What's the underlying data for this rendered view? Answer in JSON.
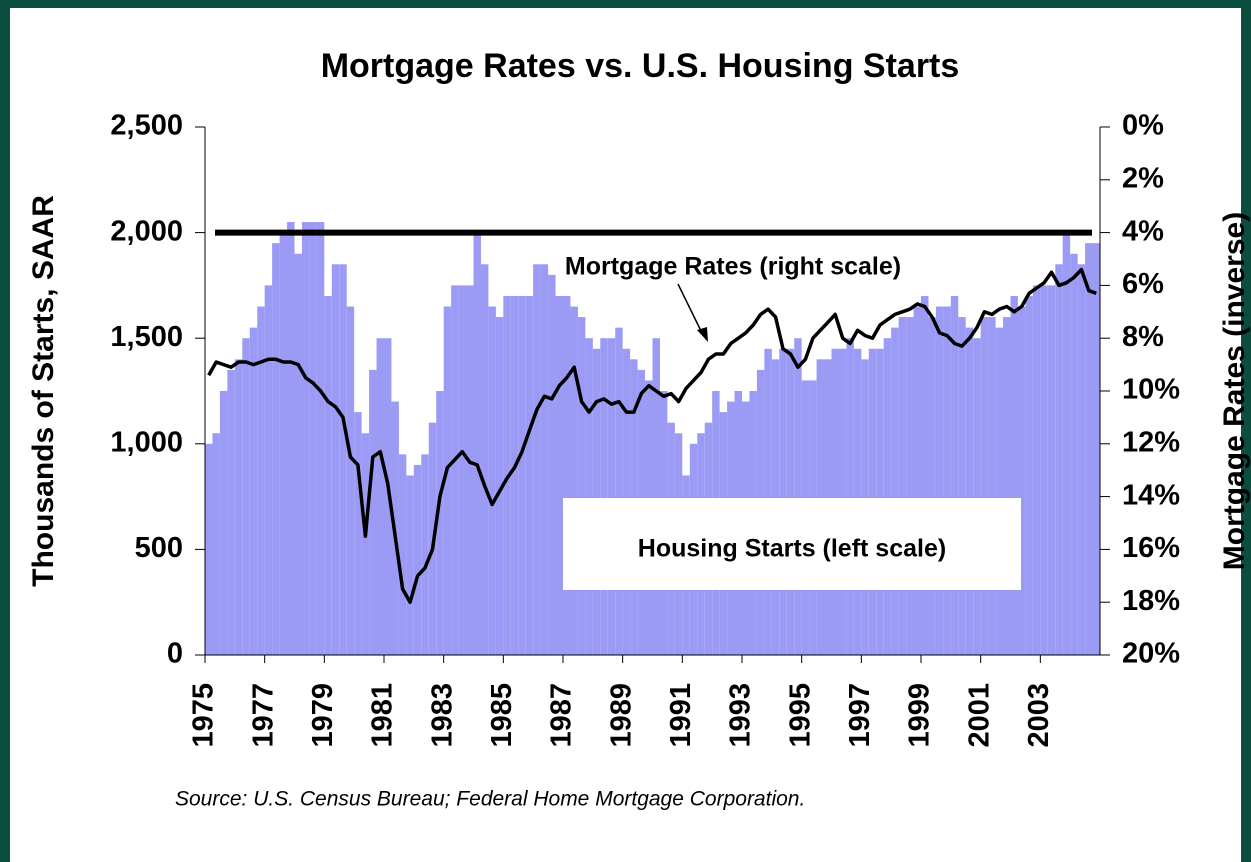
{
  "chart_data": {
    "type": "combo",
    "title": "Mortgage Rates vs. U.S. Housing Starts",
    "ylabel": "Thousands of Starts, SAAR",
    "y2label": "Mortgage Rates (inverse)",
    "source": "Source: U.S. Census Bureau; Federal Home Mortgage Corporation.",
    "annotations": [
      {
        "text": "Mortgage Rates (right scale)"
      },
      {
        "text": "Housing Starts (left scale)"
      }
    ],
    "hline": 2000,
    "xlim": [
      1975,
      2005
    ],
    "xticks": [
      1975,
      1977,
      1979,
      1981,
      1983,
      1985,
      1987,
      1989,
      1991,
      1993,
      1995,
      1997,
      1999,
      2001,
      2003
    ],
    "ylim": [
      0,
      2500
    ],
    "yticks": [
      0,
      500,
      {
        "value": 1000,
        "label": "1,000"
      },
      {
        "value": 1500,
        "label": "1,500"
      },
      {
        "value": 2000,
        "label": "2,000"
      },
      {
        "value": 2500,
        "label": "2,500"
      }
    ],
    "y2lim": [
      20,
      0
    ],
    "y2ticks": [
      {
        "value": 0,
        "label": "0%"
      },
      {
        "value": 2,
        "label": "2%"
      },
      {
        "value": 4,
        "label": "4%"
      },
      {
        "value": 6,
        "label": "6%"
      },
      {
        "value": 8,
        "label": "8%"
      },
      {
        "value": 10,
        "label": "10%"
      },
      {
        "value": 12,
        "label": "12%"
      },
      {
        "value": 14,
        "label": "14%"
      },
      {
        "value": 16,
        "label": "16%"
      },
      {
        "value": 18,
        "label": "18%"
      },
      {
        "value": 20,
        "label": "20%"
      }
    ],
    "x": [
      1975,
      1975.25,
      1975.5,
      1975.75,
      1976,
      1976.25,
      1976.5,
      1976.75,
      1977,
      1977.25,
      1977.5,
      1977.75,
      1978,
      1978.25,
      1978.5,
      1978.75,
      1979,
      1979.25,
      1979.5,
      1979.75,
      1980,
      1980.25,
      1980.5,
      1980.75,
      1981,
      1981.25,
      1981.5,
      1981.75,
      1982,
      1982.25,
      1982.5,
      1982.75,
      1983,
      1983.25,
      1983.5,
      1983.75,
      1984,
      1984.25,
      1984.5,
      1984.75,
      1985,
      1985.25,
      1985.5,
      1985.75,
      1986,
      1986.25,
      1986.5,
      1986.75,
      1987,
      1987.25,
      1987.5,
      1987.75,
      1988,
      1988.25,
      1988.5,
      1988.75,
      1989,
      1989.25,
      1989.5,
      1989.75,
      1990,
      1990.25,
      1990.5,
      1990.75,
      1991,
      1991.25,
      1991.5,
      1991.75,
      1992,
      1992.25,
      1992.5,
      1992.75,
      1993,
      1993.25,
      1993.5,
      1993.75,
      1994,
      1994.25,
      1994.5,
      1994.75,
      1995,
      1995.25,
      1995.5,
      1995.75,
      1996,
      1996.25,
      1996.5,
      1996.75,
      1997,
      1997.25,
      1997.5,
      1997.75,
      1998,
      1998.25,
      1998.5,
      1998.75,
      1999,
      1999.25,
      1999.5,
      1999.75,
      2000,
      2000.25,
      2000.5,
      2000.75,
      2001,
      2001.25,
      2001.5,
      2001.75,
      2002,
      2002.25,
      2002.5,
      2002.75,
      2003,
      2003.25,
      2003.5,
      2003.75,
      2004,
      2004.25,
      2004.5,
      2004.75
    ],
    "series": [
      {
        "name": "Housing Starts",
        "type": "bar",
        "axis": "y",
        "color": "#9b9bf5",
        "values": [
          1000,
          1050,
          1250,
          1350,
          1400,
          1500,
          1550,
          1650,
          1750,
          1950,
          2000,
          2050,
          1900,
          2050,
          2050,
          2050,
          1700,
          1850,
          1850,
          1650,
          1150,
          1050,
          1350,
          1500,
          1500,
          1200,
          950,
          850,
          900,
          950,
          1100,
          1250,
          1650,
          1750,
          1750,
          1750,
          2000,
          1850,
          1650,
          1600,
          1700,
          1700,
          1700,
          1700,
          1850,
          1850,
          1800,
          1700,
          1700,
          1650,
          1600,
          1500,
          1450,
          1500,
          1500,
          1550,
          1450,
          1400,
          1350,
          1300,
          1500,
          1250,
          1100,
          1050,
          850,
          1000,
          1050,
          1100,
          1250,
          1150,
          1200,
          1250,
          1200,
          1250,
          1350,
          1450,
          1400,
          1450,
          1450,
          1500,
          1300,
          1300,
          1400,
          1400,
          1450,
          1450,
          1500,
          1450,
          1400,
          1450,
          1450,
          1500,
          1550,
          1600,
          1600,
          1650,
          1700,
          1600,
          1650,
          1650,
          1700,
          1600,
          1550,
          1500,
          1600,
          1600,
          1550,
          1600,
          1700,
          1650,
          1700,
          1750,
          1750,
          1750,
          1850,
          2000,
          1900,
          1850,
          1950,
          1950
        ]
      },
      {
        "name": "Mortgage Rates",
        "type": "line",
        "axis": "y2",
        "color": "#000000",
        "values": [
          9.4,
          8.9,
          9.0,
          9.1,
          8.9,
          8.9,
          9.0,
          8.9,
          8.8,
          8.8,
          8.9,
          8.9,
          9.0,
          9.5,
          9.7,
          10.0,
          10.4,
          10.6,
          11.0,
          12.5,
          12.8,
          15.5,
          12.5,
          12.3,
          13.5,
          15.5,
          17.5,
          18.0,
          17.0,
          16.7,
          16.0,
          14.0,
          12.9,
          12.6,
          12.3,
          12.7,
          12.8,
          13.6,
          14.3,
          13.8,
          13.3,
          12.9,
          12.3,
          11.5,
          10.7,
          10.2,
          10.3,
          9.8,
          9.5,
          9.1,
          10.4,
          10.8,
          10.4,
          10.3,
          10.5,
          10.4,
          10.8,
          10.8,
          10.1,
          9.8,
          10.0,
          10.2,
          10.1,
          10.4,
          9.9,
          9.6,
          9.3,
          8.8,
          8.6,
          8.6,
          8.2,
          8.0,
          7.8,
          7.5,
          7.1,
          6.9,
          7.2,
          8.4,
          8.6,
          9.1,
          8.8,
          8.0,
          7.7,
          7.4,
          7.1,
          8.0,
          8.2,
          7.7,
          7.9,
          8.0,
          7.5,
          7.3,
          7.1,
          7.0,
          6.9,
          6.7,
          6.8,
          7.2,
          7.8,
          7.9,
          8.2,
          8.3,
          8.0,
          7.6,
          7.0,
          7.1,
          6.9,
          6.8,
          7.0,
          6.8,
          6.3,
          6.1,
          5.9,
          5.5,
          6.0,
          5.9,
          5.7,
          5.4,
          6.2,
          6.3
        ]
      }
    ]
  }
}
